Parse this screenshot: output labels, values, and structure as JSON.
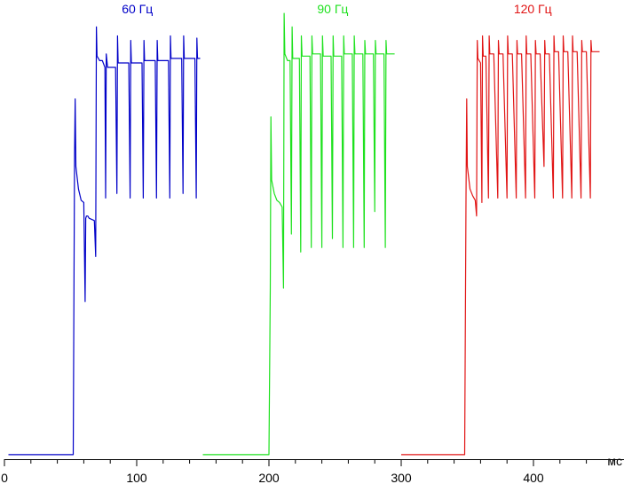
{
  "chart_data": {
    "type": "line",
    "xlabel": "мс",
    "ylabel": "",
    "title": "",
    "xlim": [
      0,
      465
    ],
    "ylim": [
      0,
      1
    ],
    "x_ticks": [
      0,
      100,
      200,
      300,
      400
    ],
    "grid": false,
    "legend": "none",
    "series": [
      {
        "name": "60 Гц",
        "color": "#0000c8",
        "x": [
          3,
          52,
          53,
          53.5,
          54,
          56,
          58,
          60,
          61,
          61.5,
          62,
          63,
          64,
          68,
          69,
          69.5,
          70,
          72,
          74,
          76,
          76.5,
          77,
          78,
          80,
          84,
          85,
          85.5,
          86,
          88,
          94,
          95,
          95.5,
          96,
          98,
          104,
          105,
          105.5,
          106,
          108,
          114,
          115,
          115.5,
          116,
          118,
          124,
          125,
          125.5,
          126,
          128,
          134,
          135,
          135.5,
          136,
          138,
          144,
          145,
          145.5,
          146,
          148
        ],
        "y": [
          0.01,
          0.01,
          0.68,
          0.8,
          0.65,
          0.6,
          0.575,
          0.57,
          0.35,
          0.535,
          0.54,
          0.54,
          0.535,
          0.53,
          0.45,
          0.96,
          0.895,
          0.885,
          0.885,
          0.87,
          0.58,
          0.9,
          0.87,
          0.87,
          0.87,
          0.59,
          0.94,
          0.88,
          0.88,
          0.88,
          0.58,
          0.93,
          0.88,
          0.88,
          0.88,
          0.58,
          0.93,
          0.885,
          0.885,
          0.885,
          0.58,
          0.93,
          0.885,
          0.885,
          0.885,
          0.58,
          0.94,
          0.89,
          0.89,
          0.89,
          0.59,
          0.94,
          0.89,
          0.89,
          0.89,
          0.58,
          0.935,
          0.89,
          0.89
        ]
      },
      {
        "name": "90 Гц",
        "color": "#1ee11e",
        "x": [
          150,
          200,
          201,
          201.5,
          202,
          204,
          206,
          208,
          210,
          211,
          211.5,
          212,
          214,
          216,
          217,
          217.5,
          218,
          220,
          223,
          224,
          224.5,
          225,
          228,
          231,
          232,
          232.5,
          233,
          236,
          239,
          240,
          240.5,
          241,
          244,
          247,
          248,
          248.5,
          249,
          252,
          255,
          256,
          256.5,
          257,
          260,
          263,
          264,
          264.5,
          265,
          268,
          271,
          272,
          272.5,
          273,
          276,
          279,
          280,
          280.5,
          281,
          284,
          287,
          288,
          288.5,
          289,
          295
        ],
        "y": [
          0.01,
          0.01,
          0.38,
          0.76,
          0.62,
          0.59,
          0.575,
          0.57,
          0.56,
          0.38,
          0.99,
          0.9,
          0.885,
          0.885,
          0.5,
          0.96,
          0.89,
          0.89,
          0.89,
          0.46,
          0.94,
          0.895,
          0.895,
          0.895,
          0.47,
          0.94,
          0.9,
          0.9,
          0.9,
          0.47,
          0.94,
          0.895,
          0.895,
          0.895,
          0.49,
          0.94,
          0.895,
          0.895,
          0.895,
          0.47,
          0.94,
          0.9,
          0.9,
          0.9,
          0.47,
          0.94,
          0.9,
          0.9,
          0.9,
          0.47,
          0.93,
          0.9,
          0.9,
          0.9,
          0.55,
          0.93,
          0.9,
          0.9,
          0.9,
          0.47,
          0.93,
          0.9,
          0.9
        ]
      },
      {
        "name": "120 Гц",
        "color": "#e11414",
        "x": [
          300,
          348,
          349,
          349.5,
          350,
          352,
          354,
          356,
          357,
          357.5,
          358,
          360,
          361,
          361.5,
          362,
          364,
          366,
          366.5,
          367,
          370,
          373,
          373.5,
          374,
          377,
          380,
          380.5,
          381,
          384,
          387,
          387.5,
          388,
          391,
          394,
          394.5,
          395,
          398,
          401,
          401.5,
          402,
          405,
          408,
          408.5,
          409,
          412,
          415,
          415.5,
          416,
          419,
          422,
          422.5,
          423,
          426,
          429,
          429.5,
          430,
          433,
          436,
          436.5,
          437,
          440,
          443,
          443.5,
          444,
          450
        ],
        "y": [
          0.01,
          0.01,
          0.58,
          0.8,
          0.65,
          0.6,
          0.585,
          0.575,
          0.54,
          0.93,
          0.89,
          0.88,
          0.57,
          0.94,
          0.895,
          0.895,
          0.58,
          0.94,
          0.9,
          0.9,
          0.58,
          0.93,
          0.9,
          0.9,
          0.58,
          0.94,
          0.9,
          0.9,
          0.58,
          0.93,
          0.9,
          0.9,
          0.58,
          0.94,
          0.9,
          0.9,
          0.58,
          0.93,
          0.9,
          0.9,
          0.65,
          0.93,
          0.9,
          0.9,
          0.58,
          0.94,
          0.905,
          0.905,
          0.58,
          0.94,
          0.905,
          0.905,
          0.58,
          0.94,
          0.905,
          0.905,
          0.58,
          0.93,
          0.905,
          0.905,
          0.58,
          0.93,
          0.905,
          0.905
        ]
      }
    ]
  }
}
